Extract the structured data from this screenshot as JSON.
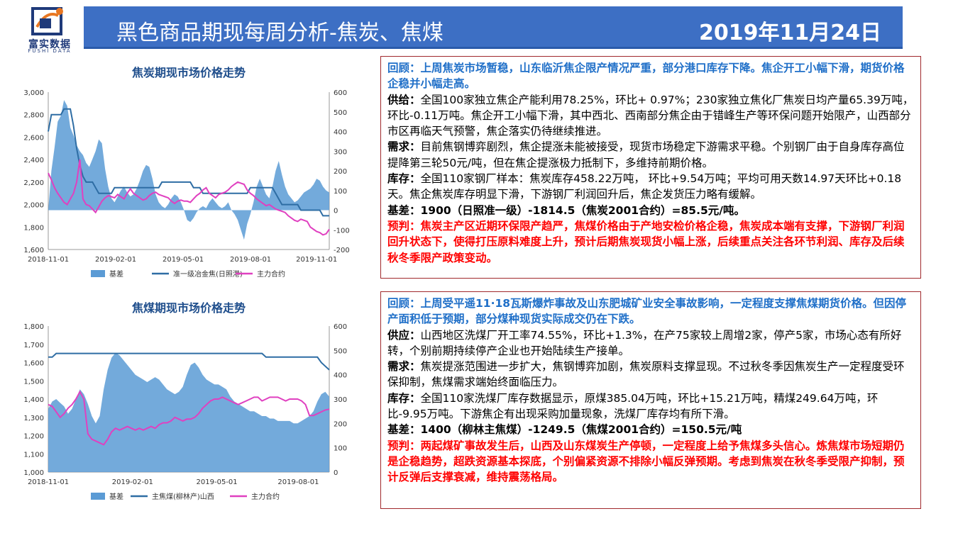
{
  "header": {
    "logo_text": "富实数据",
    "logo_sub": "FUSHI DATA",
    "title": "黑色商品期现每周分析-焦炭、焦煤",
    "date": "2019年11月24日",
    "bar_color": "#3d6fc4"
  },
  "chart_data": [
    {
      "type": "area",
      "title": "焦炭期现市场价格走势",
      "x_ticks": [
        "2018-11-01",
        "2019-02-01",
        "2019-05-01",
        "2019-08-01",
        "2019-11-01"
      ],
      "y_left": {
        "range": [
          1600,
          3000
        ],
        "ticks": [
          "1,600",
          "1,800",
          "2,000",
          "2,200",
          "2,400",
          "2,600",
          "2,800",
          "3,000"
        ]
      },
      "y_right": {
        "range": [
          -200,
          600
        ],
        "ticks": [
          "-200",
          "-100",
          "0",
          "100",
          "200",
          "300",
          "400",
          "500",
          "600"
        ]
      },
      "legend": [
        "基差",
        "准一级冶金焦(日照港)",
        "主力合约"
      ],
      "series": [
        {
          "name": "基差",
          "axis": "right",
          "color": "#5b9bd5",
          "values": [
            0,
            200,
            320,
            450,
            480,
            560,
            530,
            420,
            380,
            330,
            300,
            280,
            240,
            220,
            260,
            300,
            360,
            340,
            210,
            120,
            60,
            40,
            70,
            100,
            120,
            90,
            70,
            80,
            110,
            150,
            200,
            230,
            220,
            160,
            80,
            40,
            20,
            10,
            30,
            60,
            80,
            70,
            40,
            0,
            -50,
            -60,
            -40,
            -10,
            10,
            20,
            10,
            40,
            60,
            40,
            20,
            10,
            20,
            40,
            0,
            -20,
            -50,
            -100,
            -150,
            -70,
            -20,
            40,
            120,
            160,
            120,
            80,
            60,
            120,
            200,
            250,
            180,
            120,
            80,
            60,
            40,
            50,
            70,
            90,
            100,
            110,
            130,
            160,
            150,
            120,
            100,
            90
          ]
        },
        {
          "name": "准一级冶金焦(日照港)",
          "axis": "left",
          "color": "#2e6da4",
          "values": [
            2650,
            2800,
            2800,
            2800,
            2800,
            2850,
            2850,
            2850,
            2700,
            2500,
            2350,
            2250,
            2200,
            2200,
            2200,
            2150,
            2100,
            2100,
            2100,
            2100,
            2100,
            2150,
            2150,
            2150,
            2150,
            2150,
            2150,
            2150,
            2150,
            2150,
            2150,
            2150,
            2150,
            2150,
            2150,
            2150,
            2200,
            2200,
            2200,
            2200,
            2200,
            2200,
            2200,
            2200,
            2200,
            2200,
            2150,
            2150,
            2150,
            2100,
            2100,
            2100,
            2100,
            2100,
            2100,
            2100,
            2100,
            2100,
            2100,
            2100,
            2100,
            2100,
            2100,
            2100,
            2150,
            2150,
            2150,
            2150,
            2150,
            2150,
            2150,
            2150,
            2100,
            2050,
            2000,
            2000,
            2000,
            2000,
            2000,
            2000,
            1950,
            1950,
            1950,
            1950,
            1950,
            1950,
            1950,
            1900,
            1900,
            1900
          ]
        },
        {
          "name": "主力合约",
          "axis": "left",
          "color": "#e040c0",
          "values": [
            2280,
            2220,
            2150,
            2100,
            2060,
            2020,
            2000,
            2050,
            2100,
            2200,
            2400,
            2050,
            2000,
            1990,
            1960,
            1930,
            1980,
            2030,
            2060,
            2080,
            2070,
            2060,
            2090,
            2070,
            2050,
            2100,
            2140,
            2100,
            2080,
            2060,
            2040,
            2050,
            2080,
            2100,
            2110,
            2090,
            2080,
            2070,
            2060,
            2030,
            2010,
            2030,
            2040,
            2030,
            2030,
            2020,
            2050,
            2080,
            2100,
            2130,
            2150,
            2100,
            2080,
            2060,
            2090,
            2100,
            2110,
            2130,
            2160,
            2180,
            2200,
            2190,
            2180,
            2130,
            2100,
            2080,
            2050,
            2030,
            2010,
            1990,
            2000,
            1980,
            1960,
            1950,
            1940,
            1930,
            1900,
            1880,
            1860,
            1850,
            1870,
            1860,
            1850,
            1800,
            1780,
            1760,
            1750,
            1730,
            1740,
            1780
          ]
        }
      ]
    },
    {
      "type": "area",
      "title": "焦煤期现市场价格走势",
      "x_ticks": [
        "2018-11-01",
        "2019-02-01",
        "2019-05-01",
        "2019-08-01"
      ],
      "y_left": {
        "range": [
          1000,
          1800
        ],
        "ticks": [
          "1,000",
          "1,100",
          "1,200",
          "1,300",
          "1,400",
          "1,500",
          "1,600",
          "1,700",
          "1,800"
        ]
      },
      "y_right": {
        "range": [
          0,
          600
        ],
        "ticks": [
          "0",
          "100",
          "200",
          "300",
          "400",
          "500",
          "600"
        ]
      },
      "legend": [
        "基差",
        "主焦煤(柳林产)山西",
        "主力合约"
      ],
      "series": [
        {
          "name": "基差",
          "axis": "right",
          "color": "#5b9bd5",
          "values": [
            260,
            290,
            300,
            285,
            270,
            240,
            260,
            300,
            340,
            320,
            280,
            230,
            200,
            230,
            340,
            420,
            470,
            490,
            480,
            460,
            440,
            420,
            400,
            390,
            380,
            370,
            380,
            390,
            380,
            360,
            340,
            330,
            320,
            330,
            350,
            400,
            440,
            450,
            430,
            400,
            380,
            370,
            360,
            360,
            350,
            340,
            310,
            290,
            280,
            270,
            260,
            250,
            250,
            240,
            230,
            230,
            220,
            220,
            210,
            210,
            210,
            210,
            200,
            200,
            210,
            220,
            230,
            250,
            290,
            320,
            330,
            310
          ]
        },
        {
          "name": "主焦煤(柳林产)山西",
          "axis": "left",
          "color": "#2e6da4",
          "values": [
            1630,
            1630,
            1650,
            1650,
            1650,
            1650,
            1650,
            1650,
            1650,
            1650,
            1650,
            1650,
            1650,
            1650,
            1650,
            1650,
            1650,
            1650,
            1650,
            1650,
            1650,
            1650,
            1650,
            1650,
            1650,
            1650,
            1650,
            1650,
            1650,
            1650,
            1650,
            1650,
            1650,
            1650,
            1650,
            1650,
            1650,
            1650,
            1650,
            1650,
            1650,
            1650,
            1650,
            1650,
            1650,
            1650,
            1650,
            1650,
            1650,
            1650,
            1650,
            1650,
            1650,
            1650,
            1650,
            1630,
            1630,
            1630,
            1630,
            1630,
            1630,
            1630,
            1630,
            1630,
            1630,
            1630,
            1630,
            1630,
            1630,
            1600,
            1580,
            1560
          ]
        },
        {
          "name": "主力合约",
          "axis": "left",
          "color": "#e040c0",
          "values": [
            1370,
            1360,
            1330,
            1300,
            1320,
            1350,
            1370,
            1400,
            1440,
            1400,
            1210,
            1180,
            1170,
            1160,
            1150,
            1180,
            1220,
            1240,
            1230,
            1240,
            1250,
            1240,
            1230,
            1240,
            1230,
            1240,
            1250,
            1240,
            1260,
            1270,
            1270,
            1280,
            1300,
            1290,
            1280,
            1290,
            1290,
            1300,
            1320,
            1350,
            1370,
            1390,
            1400,
            1400,
            1410,
            1400,
            1390,
            1380,
            1370,
            1380,
            1390,
            1400,
            1410,
            1410,
            1390,
            1400,
            1410,
            1410,
            1410,
            1400,
            1390,
            1400,
            1400,
            1400,
            1390,
            1370,
            1310,
            1310,
            1320,
            1330,
            1340,
            1345
          ]
        }
      ]
    }
  ],
  "panel1": {
    "review": "回顾：上周焦炭市场暂稳，山东临沂焦企限产情况严重，部分港口库存下降。焦企开工小幅下滑，期货价格企稳并小幅走高。",
    "supply_label": "供给：",
    "supply": "全国100家独立焦企产能利用78.25%，环比+ 0.97%；230家独立焦化厂焦炭日均产量65.39万吨，环比-0.11万吨。焦企开工小幅下滑，其中西北、西南部分焦企由于错峰生产等环保问题开始限产，山西部分市区再临天气预警，焦企落实仍待继续推进。",
    "demand_label": "需求：",
    "demand": "目前焦钢博弈剧烈，焦企提涨未能被接受，现货市场稳定下游需求平稳。个别钢厂由于自身库存高位提降第三轮50元/吨，但在焦企提涨极力抵制下，多维持前期价格。",
    "stock_label": "库存：",
    "stock": "全国110家钢厂样本：焦炭库存458.22万吨， 环比+9.54万吨；平均可用天数14.97天环比+0.18天。焦企焦炭库存明显下滑，下游钢厂利润回升后，焦企发货压力略有缓解。",
    "basis": "基差：1900（日照准一级）-1814.5（焦炭2001合约）=85.5元/吨。",
    "forecast": "预判：焦炭主产区近期环保限产趋严，焦煤价格由于产地安检价格企稳，焦炭成本端有支撑，下游钢厂利润回升状态下，使得打压原料难度上升，预计后期焦炭现货小幅上涨，后续重点关注各环节利润、库存及后续秋冬季限产政策变动。"
  },
  "panel2": {
    "review": "回顾：上周受平遥11·18瓦斯爆炸事故及山东肥城矿业安全事故影响，一定程度支撑焦煤期货价格。但因停产面积低于预期，部分煤种现货实际成交仍在下跌。",
    "supply_label": "供应：",
    "supply": "山西地区洗煤厂开工率74.55%，环比+1.3%，在产75家较上周增2家，停产5家，市场心态有所好转，个别前期持续停产企业也开始陆续生产接单。",
    "demand_label": "需求：",
    "demand": "焦炭提涨范围进一步扩大，焦钢博弈加剧，焦炭原料支撑显现。不过秋冬季因焦炭生产一定程度受环保抑制，焦煤需求端始终面临压力。",
    "stock_label": "库存：",
    "stock": "全国110家洗煤厂库存数据显示，原煤385.04万吨，环比+15.21万吨，精煤249.64万吨，环比-9.95万吨。下游焦企有出现采购加量现象，洗煤厂库存均有所下滑。",
    "basis": "基差：1400（柳林主焦煤）-1249.5（焦煤2001合约）=150.5元/吨",
    "forecast": "预判：两起煤矿事故发生后，山西及山东煤炭生产停顿，一定程度上给予焦煤多头信心。炼焦煤市场短期仍是企稳趋势，超跌资源基本探底，个别偏紧资源不排除小幅反弹预期。考虑到焦炭在秋冬季受限产抑制，预计反弹后支撑衰减，维持震荡格局。"
  }
}
